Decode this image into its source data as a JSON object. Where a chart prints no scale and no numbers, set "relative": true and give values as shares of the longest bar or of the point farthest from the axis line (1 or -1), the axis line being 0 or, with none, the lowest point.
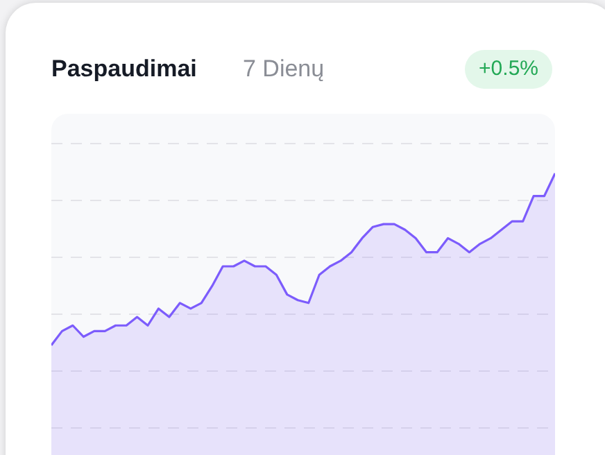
{
  "chart_data": {
    "type": "area",
    "title": "Paspaudimai",
    "subtitle": "7 Dienų",
    "annotations": [
      "+0.5%"
    ],
    "relative": true,
    "grid": true,
    "categories": [
      null,
      null,
      null,
      null,
      null,
      null,
      null,
      null,
      null,
      null,
      null,
      null,
      null,
      null,
      null,
      null,
      null,
      null,
      null,
      null,
      null,
      null,
      null,
      null,
      null,
      null,
      null,
      null,
      null,
      null,
      null,
      null,
      null,
      null,
      null,
      null,
      null,
      null,
      null,
      null,
      null,
      null,
      null,
      null,
      null,
      null,
      null,
      null
    ],
    "series": [
      {
        "color": "#7c5cfc",
        "values": [
          0.39,
          0.44,
          0.46,
          0.42,
          0.44,
          0.44,
          0.46,
          0.46,
          0.49,
          0.46,
          0.52,
          0.49,
          0.54,
          0.52,
          0.54,
          0.6,
          0.67,
          0.67,
          0.69,
          0.67,
          0.67,
          0.64,
          0.57,
          0.55,
          0.54,
          0.64,
          0.67,
          0.69,
          0.72,
          0.77,
          0.81,
          0.82,
          0.82,
          0.8,
          0.77,
          0.72,
          0.72,
          0.77,
          0.75,
          0.72,
          0.75,
          0.77,
          0.8,
          0.83,
          0.83,
          0.92,
          0.92,
          1.0
        ]
      }
    ]
  }
}
